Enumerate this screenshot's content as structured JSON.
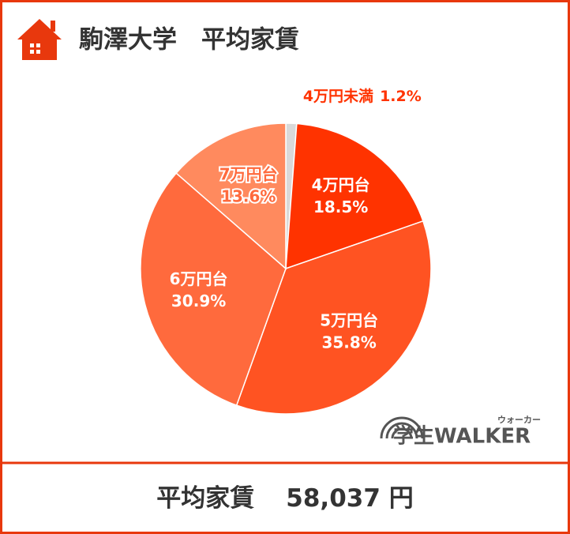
{
  "chart_data": {
    "type": "pie",
    "title": "駒澤大学　平均家賃",
    "categories": [
      "4万円未満",
      "4万円台",
      "5万円台",
      "6万円台",
      "7万円台"
    ],
    "values": [
      1.2,
      18.5,
      35.8,
      30.9,
      13.6
    ],
    "value_labels": [
      "1.2%",
      "18.5%",
      "35.8%",
      "30.9%",
      "13.6%"
    ],
    "colors": [
      "#d9d9d9",
      "#ff3300",
      "#ff5322",
      "#ff6a3d",
      "#ff8a5e"
    ]
  },
  "summary": {
    "label": "平均家賃",
    "value": "58,037 円"
  },
  "logo": {
    "text": "学生WALKER",
    "reading": "ウォーカー"
  }
}
